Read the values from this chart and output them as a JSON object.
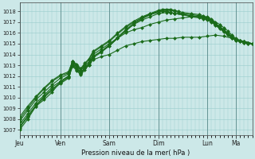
{
  "xlabel": "Pression niveau de la mer( hPa )",
  "ylim": [
    1006.5,
    1018.8
  ],
  "yticks": [
    1007,
    1008,
    1009,
    1010,
    1011,
    1012,
    1013,
    1014,
    1015,
    1016,
    1017,
    1018
  ],
  "day_labels": [
    "Jeu",
    "Ven",
    "Sam",
    "Dim",
    "Lun",
    "Ma"
  ],
  "day_positions": [
    0,
    40,
    88,
    136,
    184,
    212
  ],
  "xlim": [
    0,
    228
  ],
  "background_color": "#cce8e8",
  "grid_color": "#99cccc",
  "line_color": "#1a6b1a",
  "marker_color": "#1a6b1a",
  "series": [
    {
      "points": [
        [
          0,
          1007.0
        ],
        [
          8,
          1008.0
        ],
        [
          16,
          1009.2
        ],
        [
          24,
          1009.8
        ],
        [
          32,
          1010.5
        ],
        [
          40,
          1011.5
        ],
        [
          48,
          1012.0
        ],
        [
          52,
          1013.2
        ],
        [
          56,
          1012.8
        ],
        [
          60,
          1012.3
        ],
        [
          64,
          1012.8
        ],
        [
          68,
          1013.0
        ],
        [
          72,
          1013.5
        ],
        [
          80,
          1013.8
        ],
        [
          88,
          1014.0
        ],
        [
          96,
          1014.4
        ],
        [
          104,
          1014.8
        ],
        [
          112,
          1015.0
        ],
        [
          120,
          1015.2
        ],
        [
          128,
          1015.3
        ],
        [
          136,
          1015.4
        ],
        [
          144,
          1015.5
        ],
        [
          152,
          1015.5
        ],
        [
          160,
          1015.6
        ],
        [
          168,
          1015.6
        ],
        [
          176,
          1015.6
        ],
        [
          184,
          1015.7
        ],
        [
          192,
          1015.8
        ],
        [
          200,
          1015.7
        ],
        [
          208,
          1015.5
        ],
        [
          212,
          1015.4
        ],
        [
          216,
          1015.3
        ],
        [
          220,
          1015.2
        ],
        [
          224,
          1015.1
        ],
        [
          228,
          1015.0
        ]
      ]
    },
    {
      "points": [
        [
          0,
          1007.8
        ],
        [
          8,
          1008.8
        ],
        [
          16,
          1009.8
        ],
        [
          24,
          1010.5
        ],
        [
          32,
          1011.2
        ],
        [
          40,
          1011.8
        ],
        [
          48,
          1012.2
        ],
        [
          52,
          1013.3
        ],
        [
          56,
          1012.9
        ],
        [
          60,
          1012.5
        ],
        [
          64,
          1013.0
        ],
        [
          68,
          1013.3
        ],
        [
          72,
          1014.0
        ],
        [
          80,
          1014.5
        ],
        [
          88,
          1015.0
        ],
        [
          96,
          1015.5
        ],
        [
          104,
          1016.0
        ],
        [
          112,
          1016.3
        ],
        [
          120,
          1016.5
        ],
        [
          128,
          1016.8
        ],
        [
          136,
          1017.0
        ],
        [
          144,
          1017.2
        ],
        [
          152,
          1017.3
        ],
        [
          160,
          1017.4
        ],
        [
          168,
          1017.5
        ],
        [
          176,
          1017.5
        ],
        [
          184,
          1017.5
        ],
        [
          188,
          1017.3
        ],
        [
          192,
          1017.0
        ],
        [
          196,
          1016.8
        ],
        [
          200,
          1016.5
        ],
        [
          204,
          1016.2
        ],
        [
          208,
          1015.8
        ],
        [
          212,
          1015.5
        ],
        [
          216,
          1015.3
        ],
        [
          220,
          1015.2
        ],
        [
          224,
          1015.1
        ],
        [
          228,
          1015.0
        ]
      ]
    },
    {
      "points": [
        [
          0,
          1007.5
        ],
        [
          8,
          1008.5
        ],
        [
          16,
          1009.5
        ],
        [
          24,
          1010.2
        ],
        [
          32,
          1011.0
        ],
        [
          40,
          1011.5
        ],
        [
          48,
          1012.0
        ],
        [
          52,
          1013.0
        ],
        [
          56,
          1012.7
        ],
        [
          60,
          1012.3
        ],
        [
          64,
          1012.8
        ],
        [
          68,
          1013.2
        ],
        [
          72,
          1013.8
        ],
        [
          80,
          1014.3
        ],
        [
          88,
          1014.8
        ],
        [
          96,
          1015.5
        ],
        [
          104,
          1016.2
        ],
        [
          112,
          1016.8
        ],
        [
          120,
          1017.2
        ],
        [
          128,
          1017.5
        ],
        [
          136,
          1017.8
        ],
        [
          144,
          1017.9
        ],
        [
          148,
          1017.9
        ],
        [
          152,
          1017.8
        ],
        [
          160,
          1017.7
        ],
        [
          168,
          1017.6
        ],
        [
          176,
          1017.5
        ],
        [
          180,
          1017.4
        ],
        [
          184,
          1017.3
        ],
        [
          188,
          1017.1
        ],
        [
          192,
          1016.8
        ],
        [
          196,
          1016.5
        ],
        [
          200,
          1016.2
        ],
        [
          204,
          1015.9
        ],
        [
          208,
          1015.6
        ],
        [
          212,
          1015.3
        ],
        [
          216,
          1015.2
        ],
        [
          220,
          1015.1
        ],
        [
          224,
          1015.0
        ],
        [
          228,
          1015.0
        ]
      ]
    },
    {
      "points": [
        [
          0,
          1008.0
        ],
        [
          8,
          1009.0
        ],
        [
          16,
          1010.0
        ],
        [
          24,
          1010.8
        ],
        [
          32,
          1011.5
        ],
        [
          40,
          1012.0
        ],
        [
          48,
          1012.3
        ],
        [
          52,
          1013.4
        ],
        [
          56,
          1013.0
        ],
        [
          60,
          1012.6
        ],
        [
          64,
          1013.1
        ],
        [
          68,
          1013.5
        ],
        [
          72,
          1014.2
        ],
        [
          80,
          1014.7
        ],
        [
          88,
          1015.2
        ],
        [
          96,
          1015.9
        ],
        [
          104,
          1016.5
        ],
        [
          112,
          1017.0
        ],
        [
          120,
          1017.4
        ],
        [
          128,
          1017.7
        ],
        [
          136,
          1017.9
        ],
        [
          140,
          1018.0
        ],
        [
          144,
          1018.0
        ],
        [
          148,
          1017.9
        ],
        [
          152,
          1017.8
        ],
        [
          160,
          1017.7
        ],
        [
          168,
          1017.6
        ],
        [
          176,
          1017.5
        ],
        [
          180,
          1017.4
        ],
        [
          184,
          1017.3
        ],
        [
          188,
          1017.1
        ],
        [
          192,
          1016.8
        ],
        [
          196,
          1016.5
        ],
        [
          200,
          1016.2
        ],
        [
          204,
          1015.9
        ],
        [
          208,
          1015.6
        ],
        [
          212,
          1015.4
        ],
        [
          216,
          1015.3
        ],
        [
          220,
          1015.2
        ],
        [
          224,
          1015.1
        ],
        [
          228,
          1015.0
        ]
      ]
    },
    {
      "points": [
        [
          0,
          1007.2
        ],
        [
          8,
          1008.2
        ],
        [
          16,
          1009.2
        ],
        [
          24,
          1010.0
        ],
        [
          32,
          1010.7
        ],
        [
          40,
          1011.3
        ],
        [
          48,
          1011.8
        ],
        [
          52,
          1012.9
        ],
        [
          56,
          1012.5
        ],
        [
          60,
          1012.1
        ],
        [
          64,
          1012.6
        ],
        [
          68,
          1013.0
        ],
        [
          72,
          1013.7
        ],
        [
          80,
          1014.2
        ],
        [
          88,
          1014.8
        ],
        [
          96,
          1015.5
        ],
        [
          104,
          1016.2
        ],
        [
          112,
          1016.8
        ],
        [
          120,
          1017.3
        ],
        [
          128,
          1017.7
        ],
        [
          136,
          1018.0
        ],
        [
          140,
          1018.1
        ],
        [
          144,
          1018.1
        ],
        [
          148,
          1018.1
        ],
        [
          152,
          1018.0
        ],
        [
          156,
          1017.9
        ],
        [
          160,
          1017.8
        ],
        [
          168,
          1017.7
        ],
        [
          176,
          1017.6
        ],
        [
          180,
          1017.5
        ],
        [
          184,
          1017.4
        ],
        [
          188,
          1017.2
        ],
        [
          192,
          1016.9
        ],
        [
          196,
          1016.6
        ],
        [
          200,
          1016.3
        ],
        [
          204,
          1016.0
        ],
        [
          208,
          1015.7
        ],
        [
          212,
          1015.4
        ],
        [
          216,
          1015.3
        ],
        [
          220,
          1015.2
        ],
        [
          224,
          1015.1
        ],
        [
          228,
          1015.0
        ]
      ]
    },
    {
      "points": [
        [
          0,
          1007.3
        ],
        [
          8,
          1008.3
        ],
        [
          16,
          1009.3
        ],
        [
          24,
          1010.1
        ],
        [
          32,
          1010.8
        ],
        [
          40,
          1011.4
        ],
        [
          48,
          1011.9
        ],
        [
          52,
          1013.0
        ],
        [
          56,
          1012.6
        ],
        [
          60,
          1012.2
        ],
        [
          64,
          1012.7
        ],
        [
          68,
          1013.1
        ],
        [
          72,
          1013.8
        ],
        [
          80,
          1014.3
        ],
        [
          88,
          1014.9
        ],
        [
          96,
          1015.6
        ],
        [
          104,
          1016.3
        ],
        [
          112,
          1016.9
        ],
        [
          120,
          1017.4
        ],
        [
          128,
          1017.8
        ],
        [
          136,
          1018.1
        ],
        [
          140,
          1018.2
        ],
        [
          144,
          1018.2
        ],
        [
          148,
          1018.2
        ],
        [
          152,
          1018.1
        ],
        [
          156,
          1018.0
        ],
        [
          160,
          1017.9
        ],
        [
          168,
          1017.8
        ],
        [
          176,
          1017.7
        ],
        [
          180,
          1017.6
        ],
        [
          184,
          1017.4
        ],
        [
          188,
          1017.2
        ],
        [
          192,
          1016.9
        ],
        [
          196,
          1016.5
        ],
        [
          200,
          1016.2
        ],
        [
          204,
          1015.9
        ],
        [
          208,
          1015.6
        ],
        [
          212,
          1015.4
        ],
        [
          216,
          1015.3
        ],
        [
          220,
          1015.2
        ],
        [
          224,
          1015.1
        ],
        [
          228,
          1015.0
        ]
      ]
    },
    {
      "points": [
        [
          0,
          1008.2
        ],
        [
          8,
          1009.2
        ],
        [
          16,
          1010.1
        ],
        [
          24,
          1010.9
        ],
        [
          32,
          1011.6
        ],
        [
          40,
          1012.1
        ],
        [
          48,
          1012.4
        ],
        [
          52,
          1013.4
        ],
        [
          56,
          1013.1
        ],
        [
          60,
          1012.7
        ],
        [
          64,
          1013.2
        ],
        [
          68,
          1013.6
        ],
        [
          72,
          1014.3
        ],
        [
          80,
          1014.8
        ],
        [
          88,
          1015.3
        ],
        [
          96,
          1016.0
        ],
        [
          104,
          1016.6
        ],
        [
          112,
          1017.1
        ],
        [
          120,
          1017.5
        ],
        [
          128,
          1017.8
        ],
        [
          136,
          1018.0
        ],
        [
          140,
          1018.0
        ],
        [
          144,
          1018.0
        ],
        [
          148,
          1017.9
        ],
        [
          152,
          1017.8
        ],
        [
          160,
          1017.7
        ],
        [
          168,
          1017.5
        ],
        [
          176,
          1017.4
        ],
        [
          180,
          1017.3
        ],
        [
          184,
          1017.2
        ],
        [
          188,
          1017.0
        ],
        [
          192,
          1016.7
        ],
        [
          196,
          1016.4
        ],
        [
          200,
          1016.1
        ],
        [
          204,
          1015.8
        ],
        [
          208,
          1015.5
        ],
        [
          212,
          1015.3
        ],
        [
          216,
          1015.2
        ],
        [
          220,
          1015.1
        ],
        [
          224,
          1015.0
        ],
        [
          228,
          1015.0
        ]
      ]
    }
  ],
  "line_width": 0.8,
  "marker_style": "D",
  "marker_size": 2.0
}
